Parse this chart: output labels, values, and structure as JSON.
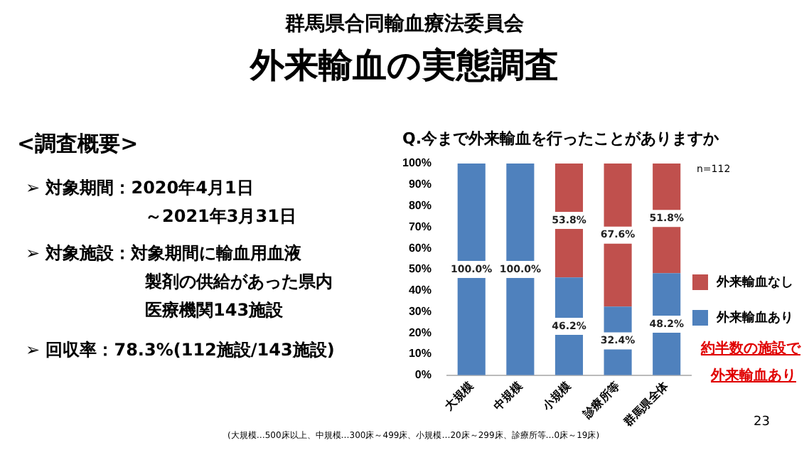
{
  "chart_data": {
    "type": "bar",
    "title": "Q.今まで外来輸血を行ったことがありますか",
    "categories": [
      "大規模",
      "中規模",
      "小規模",
      "診療所等",
      "群馬県全体"
    ],
    "stacked": true,
    "series": [
      {
        "name": "外来輸血あり",
        "color": "#4f81bd",
        "values": [
          100.0,
          100.0,
          46.2,
          32.4,
          48.2
        ],
        "value_labels": [
          "100.0%",
          "100.0%",
          "46.2%",
          "32.4%",
          "48.2%"
        ]
      },
      {
        "name": "外来輸血なし",
        "color": "#c0504d",
        "values": [
          0,
          0,
          53.8,
          67.6,
          51.8
        ],
        "value_labels": [
          null,
          null,
          "53.8%",
          "67.6%",
          "51.8%"
        ]
      }
    ],
    "ylim": [
      0,
      100
    ],
    "yticks": [
      {
        "value": 0,
        "label": "0%"
      },
      {
        "value": 10,
        "label": "10%"
      },
      {
        "value": 20,
        "label": "20%"
      },
      {
        "value": 30,
        "label": "30%"
      },
      {
        "value": 40,
        "label": "40%"
      },
      {
        "value": 50,
        "label": "50%"
      },
      {
        "value": 60,
        "label": "60%"
      },
      {
        "value": 70,
        "label": "70%"
      },
      {
        "value": 80,
        "label": "80%"
      },
      {
        "value": 90,
        "label": "90%"
      },
      {
        "value": 100,
        "label": "100%"
      }
    ],
    "grid": false,
    "legend": "right",
    "annotations": [
      "群馬県合同輸血療法委員会",
      "外来輸血の実態調査",
      "<調査概要>",
      "➢ 対象期間：2020年4月1日",
      "～2021年3月31日",
      "➢ 対象施設：対象期間に輸血用血液",
      "製剤の供給があった県内",
      "医療機関143施設",
      "➢ 回収率：78.3%(112施設/143施設)",
      "n=112",
      "約半数の施設で",
      "外来輸血あり",
      "(大規模…500床以上、中規模…300床～499床、小規模…20床～299床、診療所等…0床～19床)",
      "23"
    ]
  }
}
